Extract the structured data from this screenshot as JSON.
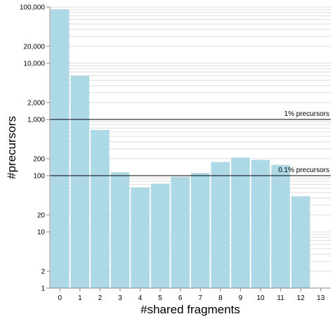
{
  "chart_data": {
    "type": "bar",
    "title": "",
    "xlabel": "#shared fragments",
    "ylabel": "#precursors",
    "yscale": "log",
    "ylim": [
      1,
      100000
    ],
    "categories": [
      "0",
      "1",
      "2",
      "3",
      "4",
      "5",
      "6",
      "7",
      "8",
      "9",
      "10",
      "11",
      "12",
      "13"
    ],
    "values": [
      90000,
      6000,
      650,
      115,
      62,
      72,
      95,
      112,
      175,
      210,
      190,
      155,
      43,
      null
    ],
    "y_tick_labels": [
      "1",
      "2",
      "10",
      "20",
      "100",
      "200",
      "1,000",
      "2,000",
      "10,000",
      "20,000",
      "100,000"
    ],
    "y_tick_values": [
      1,
      2,
      10,
      20,
      100,
      200,
      1000,
      2000,
      10000,
      20000,
      100000
    ],
    "reference_lines": [
      {
        "value": 1000,
        "label": "1% precursors"
      },
      {
        "value": 100,
        "label": "0.1% precursors"
      }
    ],
    "grid": true,
    "bar_color": "#add8e6"
  }
}
